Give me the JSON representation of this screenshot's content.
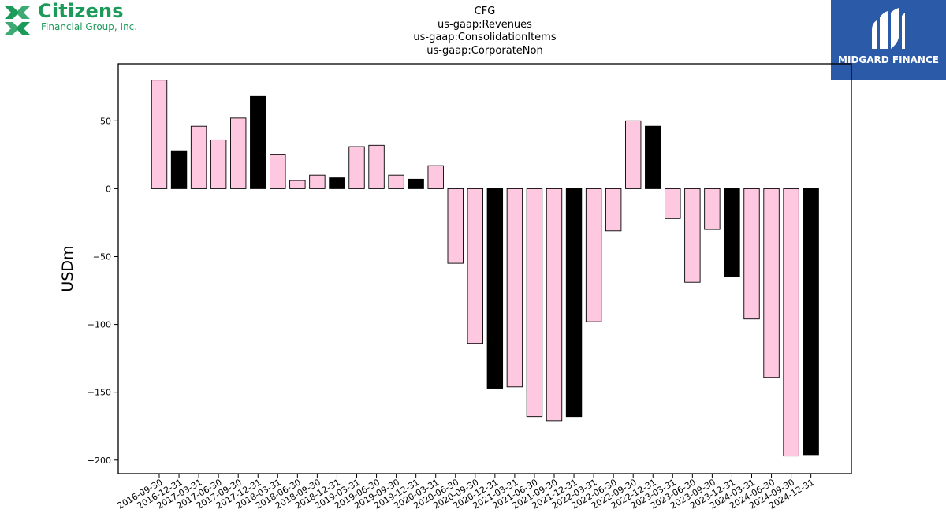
{
  "header": {
    "logo_left_name": "Citizens",
    "logo_left_sub": "Financial Group, Inc.",
    "logo_right_name": "MIDGARD FINANCE",
    "title_lines": [
      "CFG",
      "us-gaap:Revenues",
      "us-gaap:ConsolidationItems",
      "us-gaap:CorporateNon"
    ]
  },
  "colors": {
    "quarter_bar": "#ffc8e1",
    "year_end_bar": "#000000",
    "bar_edge": "#000000",
    "brand_green": "#1b9a5a",
    "brand_blue": "#2b5aa8"
  },
  "chart_data": {
    "type": "bar",
    "title": "CFG\nus-gaap:Revenues\nus-gaap:ConsolidationItems\nus-gaap:CorporateNon",
    "xlabel": "",
    "ylabel": "USDm",
    "ylim": [
      -210,
      92
    ],
    "yticks": [
      50,
      0,
      -50,
      -100,
      -150,
      -200
    ],
    "grid": false,
    "categories": [
      "2016-09-30",
      "2016-12-31",
      "2017-03-31",
      "2017-06-30",
      "2017-09-30",
      "2017-12-31",
      "2018-03-31",
      "2018-06-30",
      "2018-09-30",
      "2018-12-31",
      "2019-03-31",
      "2019-06-30",
      "2019-09-30",
      "2019-12-31",
      "2020-03-31",
      "2020-06-30",
      "2020-09-30",
      "2020-12-31",
      "2021-03-31",
      "2021-06-30",
      "2021-09-30",
      "2021-12-31",
      "2022-03-31",
      "2022-06-30",
      "2022-09-30",
      "2022-12-31",
      "2023-03-31",
      "2023-06-30",
      "2023-09-30",
      "2023-12-31",
      "2024-03-31",
      "2024-06-30",
      "2024-09-30",
      "2024-12-31"
    ],
    "values": [
      80,
      28,
      46,
      36,
      52,
      68,
      25,
      6,
      10,
      8,
      31,
      32,
      10,
      7,
      17,
      -55,
      -114,
      -147,
      -146,
      -168,
      -171,
      -168,
      -98,
      -31,
      50,
      46,
      -22,
      -69,
      -30,
      -65,
      -96,
      -139,
      -197,
      -196
    ],
    "year_end": [
      false,
      true,
      false,
      false,
      false,
      true,
      false,
      false,
      false,
      true,
      false,
      false,
      false,
      true,
      false,
      false,
      false,
      true,
      false,
      false,
      false,
      true,
      false,
      false,
      false,
      true,
      false,
      false,
      false,
      true,
      false,
      false,
      false,
      true
    ]
  }
}
